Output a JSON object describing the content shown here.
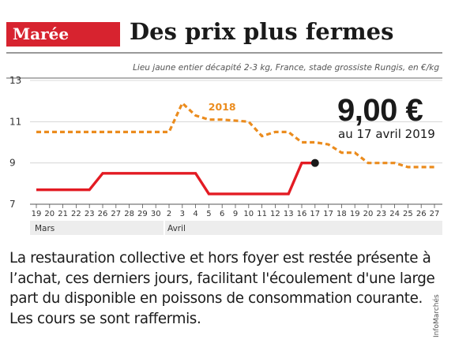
{
  "header": {
    "tag": "Marée",
    "title": "Des prix plus fermes"
  },
  "subtitle": "Lieu jaune entier décapité 2-3 kg, France, stade grossiste Rungis, en €/kg",
  "highlight": {
    "value": "9,00 €",
    "date": "au 17 avril 2019"
  },
  "body_text": "La restauration collective et hors foyer est restée présente à l’achat, ces derniers jours, facilitant l'écoulement d'une large part du disponible en poissons de consommation courante. Les cours se sont raffermis.",
  "source": "InfoMarchés",
  "colors": {
    "accent": "#d7232f",
    "series_2019": "#e31b23",
    "series_2018": "#eb8c1e",
    "grid": "#cfcfcf",
    "axis_band": "#ededed"
  },
  "chart_data": {
    "type": "line",
    "ylim": [
      7,
      13
    ],
    "yticks": [
      "7",
      "9",
      "11",
      "13"
    ],
    "grid": true,
    "x_labels": [
      "19",
      "20",
      "21",
      "22",
      "23",
      "26",
      "27",
      "28",
      "29",
      "30",
      "2",
      "3",
      "4",
      "5",
      "6",
      "9",
      "10",
      "11",
      "12",
      "13",
      "16",
      "17",
      "17",
      "18",
      "19",
      "20",
      "23",
      "24",
      "25",
      "26",
      "27"
    ],
    "months": [
      {
        "label": "Mars",
        "start_index": 0
      },
      {
        "label": "Avril",
        "start_index": 10
      }
    ],
    "series": [
      {
        "name": "2018",
        "style": "dashed",
        "color": "#eb8c1e",
        "points": [
          [
            0,
            10.5
          ],
          [
            10,
            10.5
          ],
          [
            11,
            11.9
          ],
          [
            12,
            11.3
          ],
          [
            13,
            11.1
          ],
          [
            14,
            11.1
          ],
          [
            16,
            11.0
          ],
          [
            17,
            10.3
          ],
          [
            18,
            10.5
          ],
          [
            19,
            10.5
          ],
          [
            20,
            10.0
          ],
          [
            21,
            10.0
          ],
          [
            22,
            9.9
          ],
          [
            23,
            9.5
          ],
          [
            24,
            9.5
          ],
          [
            25,
            9.0
          ],
          [
            27,
            9.0
          ],
          [
            28,
            8.8
          ],
          [
            30,
            8.8
          ]
        ]
      },
      {
        "style": "solid",
        "color": "#e31b23",
        "points": [
          [
            0,
            7.7
          ],
          [
            4,
            7.7
          ],
          [
            5,
            8.5
          ],
          [
            12,
            8.5
          ],
          [
            13,
            7.5
          ],
          [
            19,
            7.5
          ],
          [
            20,
            9.0
          ],
          [
            21,
            9.0
          ]
        ]
      }
    ],
    "marker": {
      "index": 21,
      "value": 9.0
    }
  }
}
